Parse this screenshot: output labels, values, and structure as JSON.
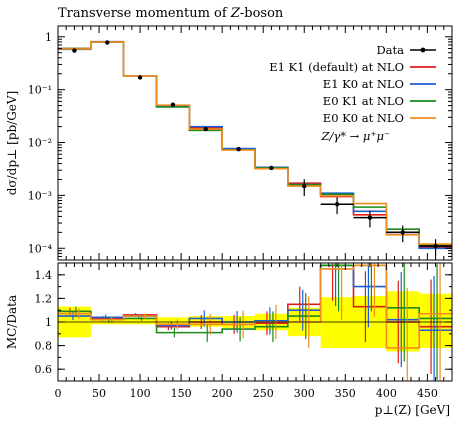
{
  "chart_data": [
    {
      "type": "line",
      "title": "Transverse momentum of Z-boson",
      "ylabel": "dσ/dp⊥ [pb/GeV]",
      "yscale": "log",
      "ylim": [
        6e-05,
        1.6
      ],
      "xlim": [
        0,
        480
      ],
      "y_ticks": [
        {
          "value": 1,
          "label": "1"
        },
        {
          "value": 0.1,
          "label": "10⁻¹"
        },
        {
          "value": 0.01,
          "label": "10⁻²"
        },
        {
          "value": 0.001,
          "label": "10⁻³"
        },
        {
          "value": 0.0001,
          "label": "10⁻⁴"
        }
      ],
      "bin_edges": [
        0,
        40,
        80,
        120,
        160,
        200,
        240,
        280,
        320,
        360,
        400,
        440,
        480
      ],
      "data": {
        "name": "Data",
        "x": [
          20,
          60,
          100,
          140,
          180,
          220,
          260,
          300,
          340,
          380,
          420,
          460
        ],
        "y": [
          0.55,
          0.78,
          0.17,
          0.052,
          0.018,
          0.0075,
          0.0033,
          0.0015,
          0.00068,
          0.00038,
          0.0002,
          0.00011
        ]
      },
      "series": [
        {
          "name": "E1 K1 (default) at NLO",
          "color": "#e31a1c",
          "values": [
            0.6,
            0.8,
            0.18,
            0.05,
            0.019,
            0.0075,
            0.0033,
            0.0017,
            0.00095,
            0.00043,
            0.0002,
            0.000105
          ]
        },
        {
          "name": "E1 K0 at NLO",
          "color": "#1f5fd6",
          "values": [
            0.58,
            0.81,
            0.18,
            0.05,
            0.02,
            0.0077,
            0.0034,
            0.0016,
            0.0011,
            0.0005,
            0.0002,
            0.0001
          ]
        },
        {
          "name": "E0 K1 at NLO",
          "color": "#1a8a1a",
          "values": [
            0.6,
            0.8,
            0.18,
            0.047,
            0.017,
            0.0073,
            0.0033,
            0.0016,
            0.00105,
            0.0006,
            0.00023,
            0.000115
          ]
        },
        {
          "name": "E0 K0 at NLO",
          "color": "#f28c1e",
          "values": [
            0.59,
            0.8,
            0.18,
            0.051,
            0.018,
            0.0072,
            0.0032,
            0.0015,
            0.00098,
            0.0007,
            0.00018,
            0.00012
          ]
        }
      ],
      "legend": {
        "placement": "top-right",
        "data_label": "Data",
        "process_label": "Z/γ* → μ⁺μ⁻"
      }
    },
    {
      "type": "line",
      "ylabel": "MC/Data",
      "xlabel": "p⊥(Z) [GeV]",
      "ylim": [
        0.5,
        1.5
      ],
      "xlim": [
        0,
        480
      ],
      "y_ticks": [
        0.6,
        0.8,
        1,
        1.2,
        1.4
      ],
      "x_ticks": [
        0,
        50,
        100,
        150,
        200,
        250,
        300,
        350,
        400,
        450
      ],
      "band": {
        "color": "#ffff00",
        "lower": [
          0.87,
          0.98,
          0.98,
          0.96,
          0.96,
          0.95,
          0.93,
          0.88,
          0.78,
          0.78,
          0.75,
          0.78
        ],
        "upper": [
          1.13,
          1.02,
          1.03,
          1.04,
          1.05,
          1.05,
          1.07,
          1.12,
          1.21,
          1.22,
          1.26,
          1.24
        ]
      },
      "ratios": [
        {
          "name": "E1 K1 (default) at NLO",
          "color": "#e31a1c",
          "values": [
            1.09,
            1.03,
            1.06,
            0.96,
            1.0,
            0.98,
            0.99,
            1.15,
            1.48,
            1.13,
            1.0,
            0.96
          ]
        },
        {
          "name": "E1 K0 at NLO",
          "color": "#1f5fd6",
          "values": [
            1.05,
            1.04,
            1.05,
            0.97,
            1.03,
            1.0,
            1.01,
            1.1,
            1.48,
            1.3,
            1.02,
            0.93
          ]
        },
        {
          "name": "E0 K1 at NLO",
          "color": "#1a8a1a",
          "values": [
            1.09,
            1.02,
            1.03,
            0.91,
            0.91,
            0.94,
            0.96,
            1.05,
            1.48,
            1.48,
            1.12,
            1.03
          ]
        },
        {
          "name": "E0 K0 at NLO",
          "color": "#f28c1e",
          "values": [
            1.07,
            1.02,
            1.05,
            0.98,
            0.98,
            0.98,
            1.0,
            1.0,
            1.45,
            1.48,
            0.78,
            1.07
          ]
        }
      ]
    }
  ]
}
